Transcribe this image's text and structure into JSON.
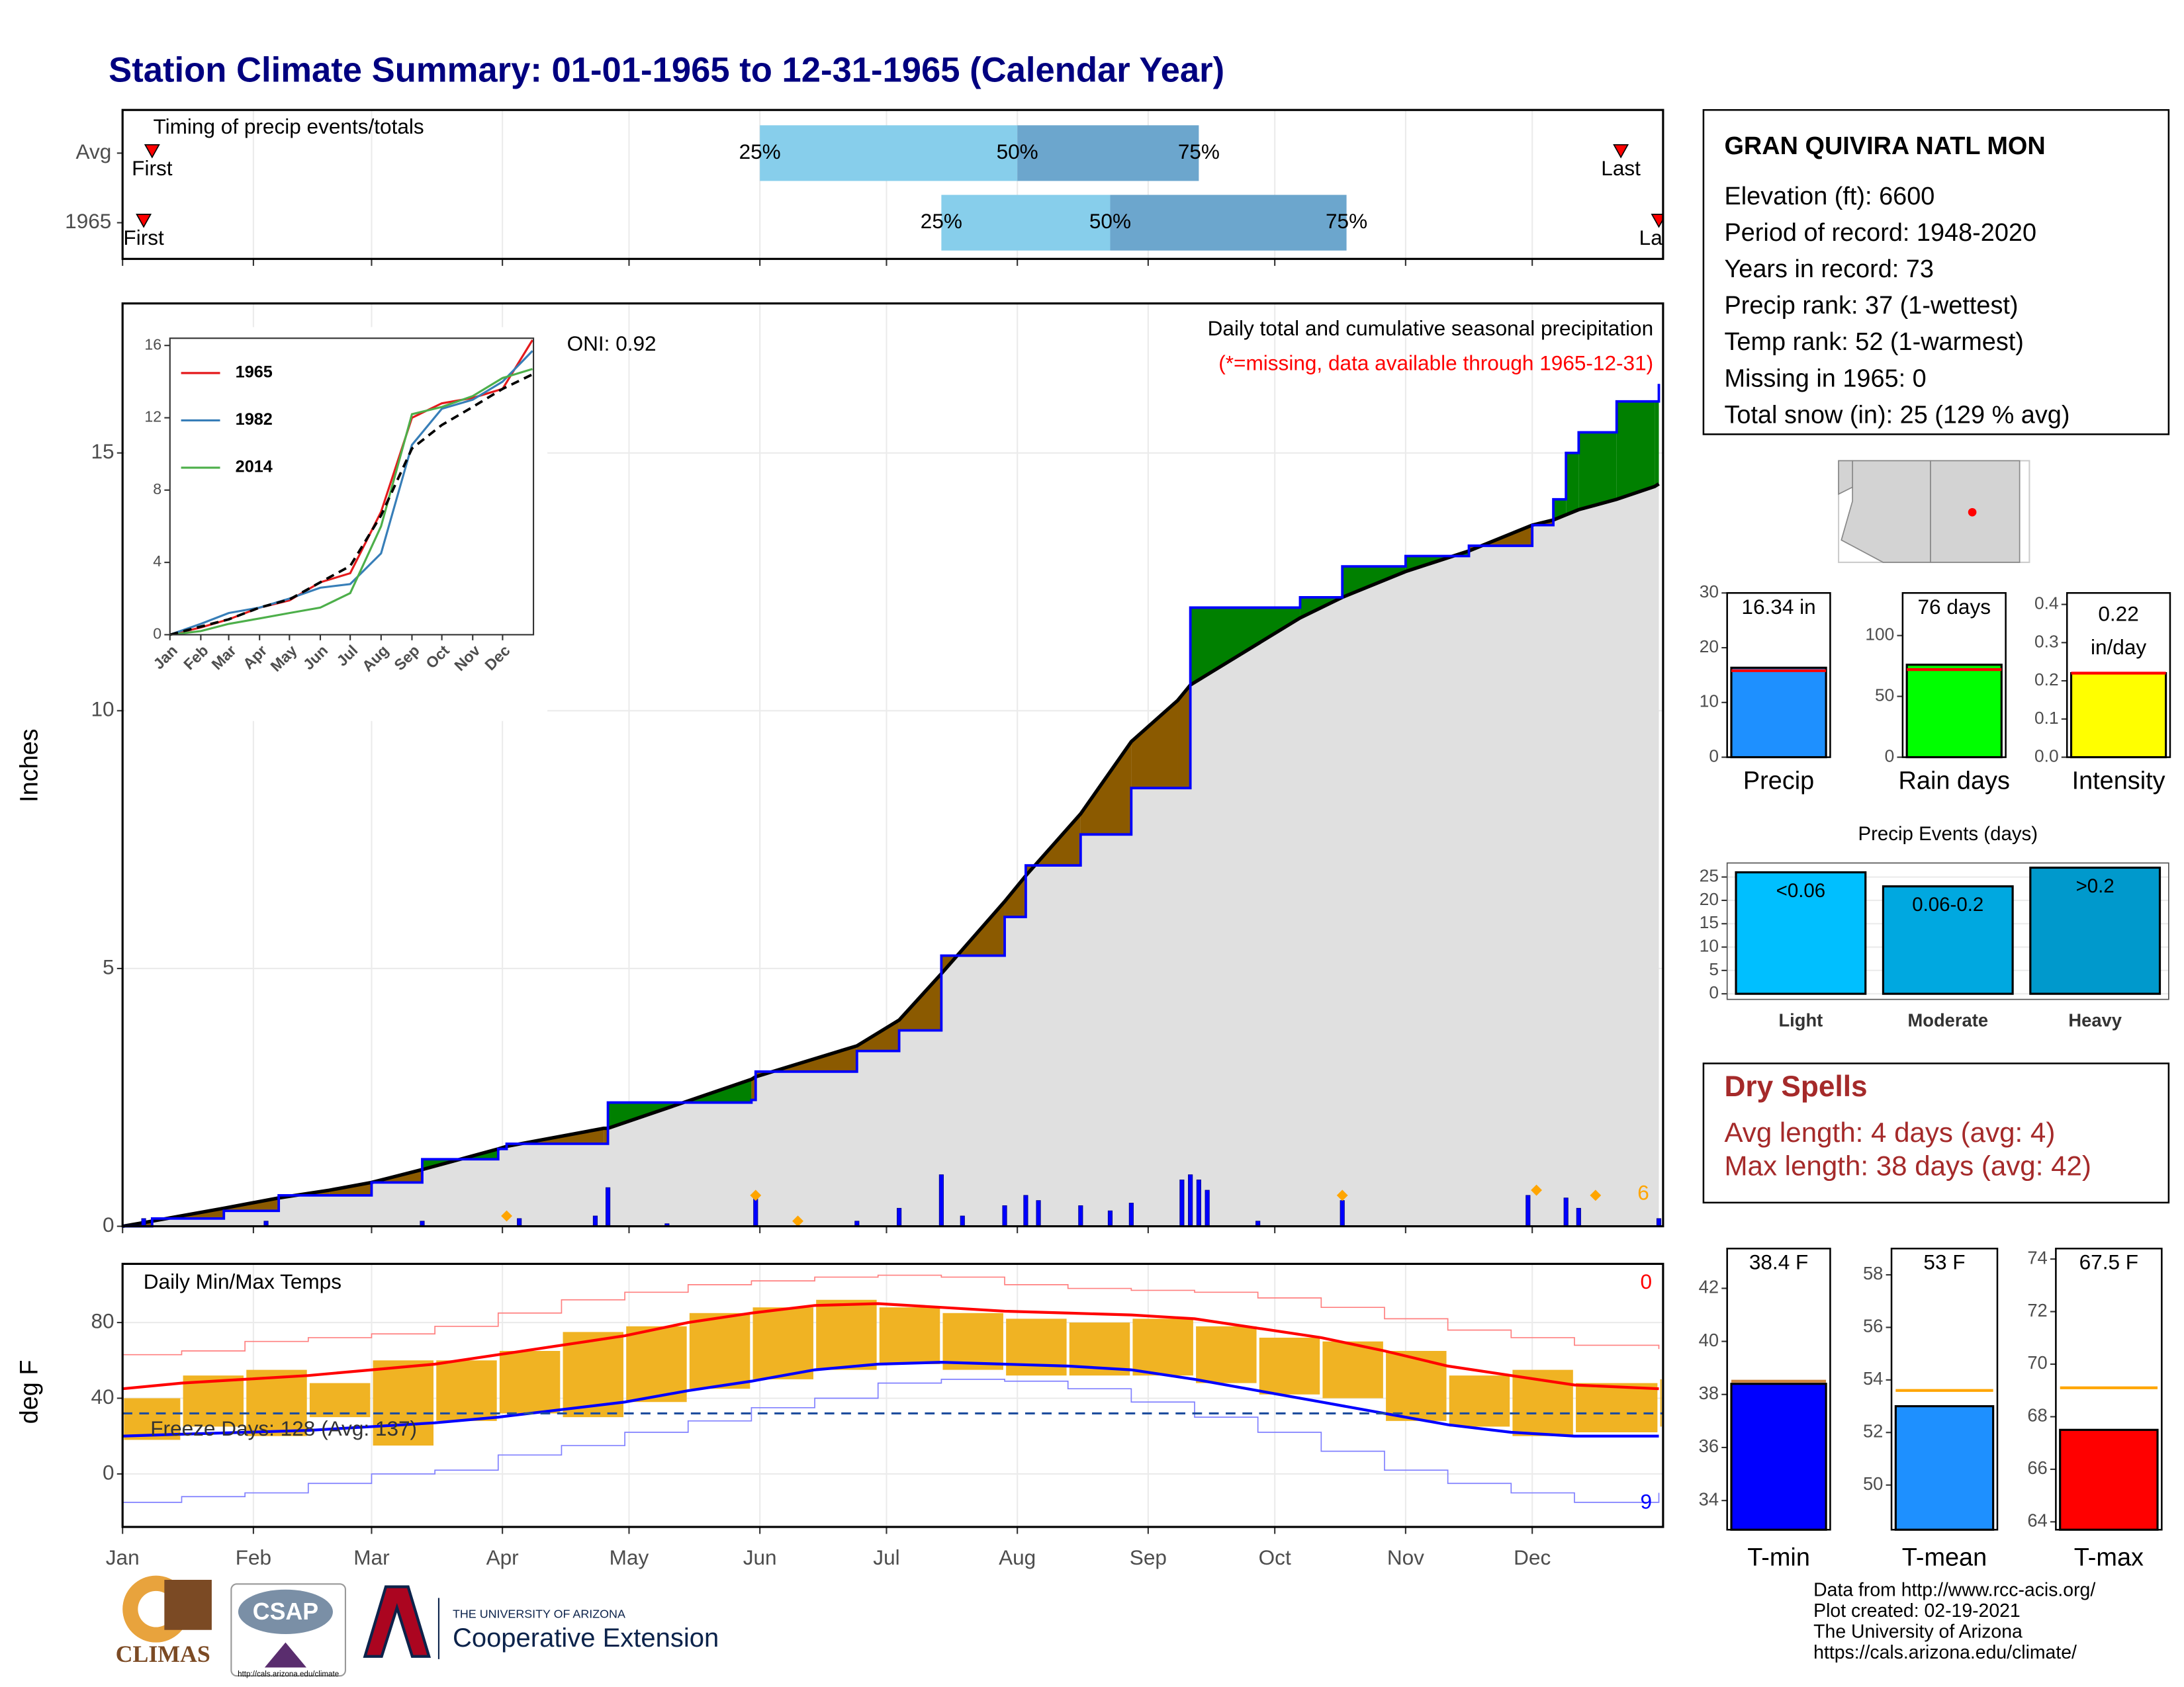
{
  "title": "Station Climate Summary: 01-01-1965 to 12-31-1965 (Calendar Year)",
  "station": {
    "name": "GRAN QUIVIRA NATL MON",
    "lines": [
      "Elevation (ft): 6600",
      "Period of record: 1948-2020",
      "Years in record: 73",
      "Precip rank: 37 (1-wettest)",
      "Temp rank: 52 (1-warmest)",
      "Missing in 1965: 0",
      "Total snow (in): 25 (129 % avg)"
    ]
  },
  "dry_spells": {
    "title": "Dry Spells",
    "lines": [
      "Avg length: 4 days (avg: 4)",
      "Max length: 38 days (avg: 42)"
    ]
  },
  "credits": [
    "Data from http://www.rcc-acis.org/",
    "Plot created: 02-19-2021",
    "The University of Arizona",
    "https://cals.arizona.edu/climate/"
  ],
  "logos": {
    "climas": "CLIMAS",
    "csap": "CSAP",
    "csap_url": "http://cals.arizona.edu/climate",
    "university": "THE UNIVERSITY OF ARIZONA",
    "extension": "Cooperative Extension"
  },
  "chart_data": [
    {
      "type": "range",
      "title": "Timing of precip events/totals",
      "categories": [
        "Avg",
        "1965"
      ],
      "first": [
        8,
        6
      ],
      "p25": [
        152,
        195
      ],
      "p50": [
        213,
        235
      ],
      "p75": [
        256,
        291
      ],
      "last": [
        356,
        365
      ],
      "first_label": "First",
      "last_label": "Last",
      "quartile_labels": [
        "25%",
        "50%",
        "75%"
      ],
      "colors": [
        "#87ceeb",
        "#6ca6cd"
      ],
      "marker_color": "#ff0000",
      "xlim": [
        1,
        366
      ]
    },
    {
      "type": "area",
      "ylabel": "Inches",
      "xlim": [
        1,
        366
      ],
      "ylim": [
        0,
        17.9
      ],
      "yticks": [
        0,
        5,
        10,
        15
      ],
      "grid": true,
      "x": [
        1,
        8,
        25,
        38,
        50,
        60,
        72,
        90,
        92,
        115,
        116,
        150,
        151,
        175,
        185,
        195,
        210,
        215,
        228,
        240,
        251,
        254,
        280,
        290,
        305,
        320,
        335,
        340,
        343,
        346,
        355,
        364,
        365
      ],
      "observed": {
        "color": "#0000ff",
        "values": [
          0,
          0.15,
          0.3,
          0.6,
          0.6,
          0.85,
          1.3,
          1.5,
          1.6,
          1.6,
          2.4,
          2.45,
          3.0,
          3.4,
          3.8,
          5.25,
          6.0,
          7.0,
          7.6,
          8.5,
          8.5,
          12.0,
          12.2,
          12.8,
          13.0,
          13.2,
          13.6,
          14.1,
          15.0,
          15.4,
          16.0,
          16.0,
          16.34
        ]
      },
      "average": {
        "color": "#000000",
        "values": [
          0,
          0.1,
          0.35,
          0.55,
          0.7,
          0.85,
          1.1,
          1.5,
          1.55,
          1.9,
          1.9,
          2.85,
          2.9,
          3.5,
          4.0,
          4.9,
          6.3,
          6.8,
          8.0,
          9.4,
          10.2,
          10.5,
          11.8,
          12.2,
          12.7,
          13.1,
          13.6,
          13.7,
          13.8,
          13.9,
          14.1,
          14.35,
          14.4
        ]
      },
      "above_color": "#008000",
      "below_color": "#8b5a00",
      "normal_fill": "#e0e0e0",
      "daily": {
        "color": "#0000ff",
        "x": [
          6,
          35,
          72,
          95,
          113,
          116,
          130,
          151,
          175,
          185,
          195,
          200,
          210,
          215,
          218,
          228,
          235,
          240,
          252,
          254,
          256,
          258,
          270,
          290,
          334,
          343,
          346,
          365
        ],
        "values": [
          0.15,
          0.1,
          0.1,
          0.15,
          0.2,
          0.75,
          0.05,
          0.55,
          0.1,
          0.35,
          1.0,
          0.2,
          0.4,
          0.6,
          0.5,
          0.4,
          0.3,
          0.45,
          0.9,
          1.0,
          0.9,
          0.7,
          0.1,
          0.5,
          0.6,
          0.55,
          0.35,
          0.15
        ]
      },
      "snow": {
        "color": "#ffa500",
        "x": [
          92,
          151,
          161,
          290,
          336,
          350
        ],
        "values": [
          0.2,
          0.6,
          0.1,
          0.6,
          0.7,
          0.6
        ],
        "count": 6
      },
      "oni": "ONI: 0.92",
      "subtitle": "Daily total and cumulative seasonal precipitation",
      "note": "(*=missing, data available through 1965-12-31)",
      "note_color": "#ff0000"
    },
    {
      "type": "line",
      "xlim": [
        1,
        366
      ],
      "ylim": [
        0,
        16.4
      ],
      "yticks": [
        0,
        4,
        8,
        12,
        16
      ],
      "xticks": [
        {
          "value": 1,
          "label": "Jan"
        },
        {
          "value": 32,
          "label": "Feb"
        },
        {
          "value": 60,
          "label": "Mar"
        },
        {
          "value": 91,
          "label": "Apr"
        },
        {
          "value": 121,
          "label": "May"
        },
        {
          "value": 152,
          "label": "Jun"
        },
        {
          "value": 182,
          "label": "Jul"
        },
        {
          "value": 213,
          "label": "Aug"
        },
        {
          "value": 244,
          "label": "Sep"
        },
        {
          "value": 274,
          "label": "Oct"
        },
        {
          "value": 305,
          "label": "Nov"
        },
        {
          "value": 335,
          "label": "Dec"
        }
      ],
      "x": [
        1,
        32,
        60,
        91,
        121,
        152,
        182,
        213,
        244,
        274,
        305,
        335,
        365
      ],
      "series": [
        {
          "name": "1965",
          "color": "#e41a1c",
          "values": [
            0,
            0.4,
            0.85,
            1.5,
            1.9,
            2.9,
            3.4,
            6.8,
            12.0,
            12.8,
            13.1,
            13.6,
            16.3
          ]
        },
        {
          "name": "1982",
          "color": "#377eb8",
          "values": [
            0,
            0.6,
            1.2,
            1.5,
            2.0,
            2.6,
            2.8,
            4.5,
            10.5,
            12.5,
            13.0,
            14.0,
            15.7
          ]
        },
        {
          "name": "2014",
          "color": "#4daf4a",
          "values": [
            0,
            0.2,
            0.6,
            0.9,
            1.2,
            1.5,
            2.3,
            6.0,
            12.2,
            12.6,
            13.2,
            14.2,
            14.7
          ]
        }
      ],
      "average": {
        "color": "#000000",
        "values": [
          0,
          0.45,
          0.85,
          1.5,
          1.95,
          2.9,
          3.8,
          6.6,
          10.3,
          11.6,
          12.6,
          13.6,
          14.4
        ]
      }
    },
    {
      "type": "band",
      "title": "Daily Min/Max Temps",
      "ylabel": "deg F",
      "xlim": [
        1,
        366
      ],
      "ylim": [
        -28,
        111
      ],
      "yticks": [
        0,
        40,
        80
      ],
      "grid": true,
      "xticks": [
        {
          "value": 1,
          "label": "Jan"
        },
        {
          "value": 32,
          "label": "Feb"
        },
        {
          "value": 60,
          "label": "Mar"
        },
        {
          "value": 91,
          "label": "Apr"
        },
        {
          "value": 121,
          "label": "May"
        },
        {
          "value": 152,
          "label": "Jun"
        },
        {
          "value": 182,
          "label": "Jul"
        },
        {
          "value": 213,
          "label": "Aug"
        },
        {
          "value": 244,
          "label": "Sep"
        },
        {
          "value": 274,
          "label": "Oct"
        },
        {
          "value": 305,
          "label": "Nov"
        },
        {
          "value": 335,
          "label": "Dec"
        }
      ],
      "x": [
        1,
        15,
        30,
        45,
        60,
        75,
        90,
        105,
        120,
        135,
        150,
        165,
        180,
        195,
        210,
        225,
        240,
        255,
        270,
        285,
        300,
        315,
        330,
        345,
        365
      ],
      "tmax": {
        "color": "#f0b323",
        "values": [
          40,
          52,
          55,
          48,
          60,
          60,
          65,
          75,
          78,
          85,
          88,
          92,
          88,
          85,
          82,
          80,
          82,
          78,
          72,
          70,
          65,
          52,
          55,
          48,
          50
        ]
      },
      "tmin": {
        "color": "#f0b323",
        "values": [
          18,
          25,
          20,
          30,
          15,
          28,
          32,
          30,
          38,
          45,
          50,
          55,
          58,
          55,
          52,
          52,
          52,
          48,
          42,
          40,
          28,
          25,
          20,
          22,
          25
        ]
      },
      "normal_max": {
        "color": "#ff0000",
        "values": [
          45,
          48,
          50,
          52,
          55,
          58,
          63,
          68,
          73,
          80,
          85,
          89,
          90,
          88,
          86,
          85,
          84,
          82,
          77,
          72,
          65,
          57,
          52,
          47,
          45
        ]
      },
      "normal_min": {
        "color": "#0000ff",
        "values": [
          20,
          21,
          22,
          23,
          25,
          27,
          30,
          34,
          38,
          44,
          49,
          55,
          58,
          59,
          58,
          57,
          55,
          50,
          44,
          38,
          32,
          26,
          22,
          20,
          20
        ]
      },
      "record_max": {
        "color": "#ff8080",
        "values": [
          63,
          65,
          70,
          72,
          74,
          78,
          85,
          92,
          96,
          100,
          102,
          104,
          105,
          104,
          100,
          98,
          97,
          96,
          93,
          88,
          82,
          76,
          72,
          68,
          66
        ]
      },
      "record_min": {
        "color": "#8080ff",
        "values": [
          -15,
          -12,
          -10,
          -5,
          0,
          2,
          10,
          15,
          22,
          28,
          35,
          40,
          48,
          50,
          49,
          45,
          38,
          30,
          22,
          12,
          2,
          -5,
          -10,
          -15,
          -10
        ]
      },
      "freeze_line": 32,
      "freeze_label": "Freeze Days: 128 (Avg: 137)",
      "record_high_count": 0,
      "record_low_count": 9
    },
    {
      "type": "bar",
      "categories": [
        "Precip"
      ],
      "values": [
        16.34
      ],
      "value_labels": [
        "16.34 in"
      ],
      "color": "#1e90ff",
      "reference": 15.8,
      "reference_color": "#ff0000",
      "ylim": [
        0,
        30
      ],
      "yticks": [
        0,
        10,
        20,
        30
      ]
    },
    {
      "type": "bar",
      "categories": [
        "Rain days"
      ],
      "values": [
        76
      ],
      "value_labels": [
        "76 days"
      ],
      "color": "#00ff00",
      "reference": 72,
      "reference_color": "#ff0000",
      "ylim": [
        0,
        135
      ],
      "yticks": [
        0,
        50,
        100
      ]
    },
    {
      "type": "bar",
      "categories": [
        "Intensity"
      ],
      "values": [
        0.22
      ],
      "unit": "in/day",
      "color": "#ffff00",
      "reference": 0.22,
      "reference_color": "#ff0000",
      "ylim": [
        0,
        0.43
      ],
      "yticks": [
        {
          "value": 0,
          "label": "0.0"
        },
        0.1,
        0.2,
        0.3,
        0.4
      ]
    },
    {
      "type": "bar",
      "title": "Precip Events (days)",
      "categories": [
        "Light",
        "Moderate",
        "Heavy"
      ],
      "values": [
        26,
        23,
        27
      ],
      "bin_labels": [
        "<0.06",
        "0.06-0.2",
        ">0.2"
      ],
      "colors": [
        "#00bfff",
        "#00a8e0",
        "#0099cc"
      ],
      "ylim": [
        -1.2,
        28
      ],
      "yticks": [
        0,
        5,
        10,
        15,
        20,
        25
      ],
      "grid": true
    },
    {
      "type": "bar",
      "categories": [
        "T-min"
      ],
      "values": [
        38.4
      ],
      "value_labels": [
        "38.4 F"
      ],
      "color": "#0000ff",
      "reference": 38.5,
      "reference_color": "#cd853f",
      "ylim": [
        32.9,
        43.5
      ],
      "yticks": [
        34,
        36,
        38,
        40,
        42
      ]
    },
    {
      "type": "bar",
      "categories": [
        "T-mean"
      ],
      "values": [
        53
      ],
      "value_labels": [
        "53 F"
      ],
      "color": "#1e90ff",
      "reference": 53.6,
      "reference_color": "#ffa500",
      "ylim": [
        48.3,
        59
      ],
      "yticks": [
        50,
        52,
        54,
        56,
        58
      ]
    },
    {
      "type": "bar",
      "categories": [
        "T-max"
      ],
      "values": [
        67.5
      ],
      "value_labels": [
        "67.5 F"
      ],
      "color": "#ff0000",
      "reference": 69.1,
      "reference_color": "#ffa500",
      "ylim": [
        63.7,
        74.4
      ],
      "yticks": [
        64,
        66,
        68,
        70,
        72,
        74
      ]
    }
  ]
}
